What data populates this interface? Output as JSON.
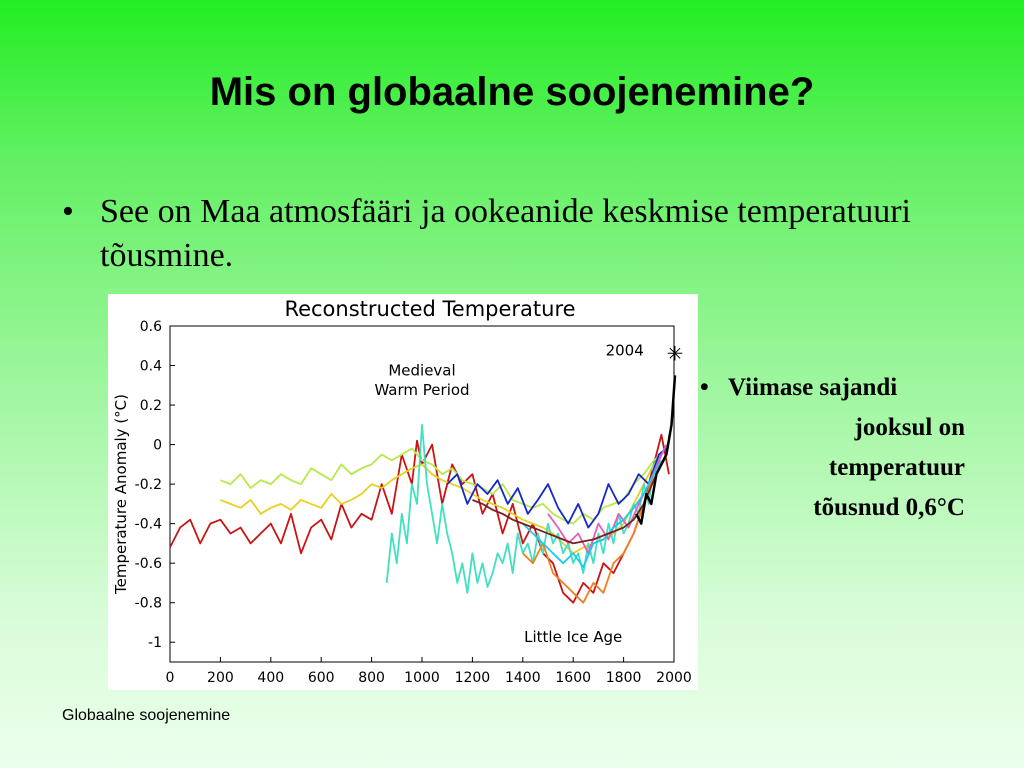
{
  "slide": {
    "title": "Mis on globaalne soojenemine?",
    "bullet": "See on Maa atmosfääri ja ookeanide keskmise temperatuuri tõusmine.",
    "side_bullet_lines": [
      "Viimase sajandi",
      "jooksul on",
      "temperatuur",
      "tõusnud 0,6°C"
    ],
    "footer": "Globaalne soojenemine"
  },
  "chart_data": {
    "type": "line",
    "title": "Reconstructed Temperature",
    "xlabel": "",
    "ylabel": "Temperature Anomaly (°C)",
    "xlim": [
      0,
      2000
    ],
    "ylim": [
      -1.1,
      0.6
    ],
    "xticks": [
      0,
      200,
      400,
      600,
      800,
      1000,
      1200,
      1400,
      1600,
      1800,
      2000
    ],
    "yticks": [
      0.6,
      0.4,
      0.2,
      0,
      -0.2,
      -0.4,
      -0.6,
      -0.8,
      -1
    ],
    "annotations": [
      {
        "text": "Medieval",
        "x": 1000,
        "y": 0.35
      },
      {
        "text": "Warm Period",
        "x": 1000,
        "y": 0.25
      },
      {
        "text": "Little Ice Age",
        "x": 1600,
        "y": -1.0
      },
      {
        "text": "2004",
        "x": 1880,
        "y": 0.45
      }
    ],
    "marker": {
      "label": "2004",
      "x": 2004,
      "y": 0.45
    },
    "series": [
      {
        "color": "#c81414",
        "x": [
          0,
          40,
          80,
          120,
          160,
          200,
          240,
          280,
          320,
          360,
          400,
          440,
          480,
          520,
          560,
          600,
          640,
          680,
          720,
          760,
          800,
          840,
          880,
          920,
          960,
          980,
          1000,
          1040,
          1080,
          1120,
          1160,
          1200,
          1240,
          1280,
          1320,
          1360,
          1400,
          1440,
          1480,
          1520,
          1560,
          1600,
          1640,
          1680,
          1720,
          1760,
          1800,
          1840,
          1880,
          1900,
          1920,
          1950,
          1980
        ],
        "y": [
          -0.52,
          -0.42,
          -0.38,
          -0.5,
          -0.4,
          -0.38,
          -0.45,
          -0.42,
          -0.5,
          -0.45,
          -0.4,
          -0.5,
          -0.35,
          -0.55,
          -0.42,
          -0.38,
          -0.48,
          -0.3,
          -0.42,
          -0.35,
          -0.38,
          -0.2,
          -0.35,
          -0.05,
          -0.2,
          0.02,
          -0.1,
          0.0,
          -0.3,
          -0.1,
          -0.2,
          -0.15,
          -0.35,
          -0.25,
          -0.45,
          -0.3,
          -0.5,
          -0.4,
          -0.55,
          -0.6,
          -0.75,
          -0.8,
          -0.7,
          -0.75,
          -0.6,
          -0.65,
          -0.55,
          -0.45,
          -0.3,
          -0.2,
          -0.1,
          0.05,
          -0.15
        ]
      },
      {
        "color": "#e8d020",
        "x": [
          200,
          240,
          280,
          320,
          360,
          400,
          440,
          480,
          520,
          560,
          600,
          640,
          680,
          720,
          760,
          800,
          840,
          880,
          920,
          960,
          1000,
          1040,
          1080,
          1120,
          1160,
          1200,
          1240,
          1280,
          1320,
          1360,
          1400,
          1440,
          1480,
          1520,
          1560,
          1600,
          1640,
          1680,
          1720,
          1760,
          1800,
          1840,
          1880,
          1920,
          1950
        ],
        "y": [
          -0.28,
          -0.3,
          -0.32,
          -0.28,
          -0.35,
          -0.32,
          -0.3,
          -0.33,
          -0.28,
          -0.3,
          -0.32,
          -0.25,
          -0.3,
          -0.28,
          -0.25,
          -0.2,
          -0.22,
          -0.18,
          -0.15,
          -0.12,
          -0.1,
          -0.15,
          -0.18,
          -0.2,
          -0.22,
          -0.25,
          -0.28,
          -0.3,
          -0.32,
          -0.35,
          -0.38,
          -0.4,
          -0.42,
          -0.45,
          -0.5,
          -0.55,
          -0.52,
          -0.5,
          -0.48,
          -0.45,
          -0.4,
          -0.3,
          -0.2,
          -0.1,
          -0.05
        ]
      },
      {
        "color": "#b8e84a",
        "x": [
          200,
          240,
          280,
          320,
          360,
          400,
          440,
          480,
          520,
          560,
          600,
          640,
          680,
          720,
          760,
          800,
          840,
          880,
          920,
          960,
          1000,
          1040,
          1080,
          1120,
          1160,
          1200,
          1240,
          1280,
          1320,
          1360,
          1400,
          1440,
          1480,
          1520,
          1560,
          1600,
          1640,
          1680,
          1720,
          1760,
          1800,
          1840,
          1880,
          1920,
          1950
        ],
        "y": [
          -0.18,
          -0.2,
          -0.15,
          -0.22,
          -0.18,
          -0.2,
          -0.15,
          -0.18,
          -0.2,
          -0.12,
          -0.15,
          -0.18,
          -0.1,
          -0.15,
          -0.12,
          -0.1,
          -0.05,
          -0.08,
          -0.05,
          -0.02,
          -0.08,
          -0.1,
          -0.15,
          -0.12,
          -0.18,
          -0.2,
          -0.22,
          -0.25,
          -0.2,
          -0.28,
          -0.3,
          -0.32,
          -0.3,
          -0.35,
          -0.38,
          -0.4,
          -0.35,
          -0.38,
          -0.32,
          -0.3,
          -0.28,
          -0.2,
          -0.15,
          -0.08,
          -0.05
        ]
      },
      {
        "color": "#40e0c0",
        "x": [
          860,
          880,
          900,
          920,
          940,
          960,
          980,
          1000,
          1020,
          1040,
          1060,
          1080,
          1100,
          1120,
          1140,
          1160,
          1180,
          1200,
          1220,
          1240,
          1260,
          1280,
          1300,
          1320,
          1340,
          1360,
          1380,
          1400,
          1420,
          1440,
          1460,
          1480,
          1500,
          1520,
          1540,
          1560,
          1580,
          1600,
          1620,
          1640,
          1660,
          1680,
          1700,
          1720,
          1740,
          1760,
          1780,
          1800,
          1820,
          1840,
          1860,
          1880,
          1900,
          1920,
          1950
        ],
        "y": [
          -0.7,
          -0.45,
          -0.6,
          -0.35,
          -0.5,
          -0.2,
          -0.3,
          0.1,
          -0.2,
          -0.35,
          -0.5,
          -0.3,
          -0.45,
          -0.55,
          -0.7,
          -0.6,
          -0.75,
          -0.55,
          -0.7,
          -0.6,
          -0.72,
          -0.65,
          -0.55,
          -0.6,
          -0.5,
          -0.65,
          -0.45,
          -0.55,
          -0.5,
          -0.6,
          -0.45,
          -0.55,
          -0.4,
          -0.5,
          -0.45,
          -0.55,
          -0.5,
          -0.6,
          -0.55,
          -0.65,
          -0.5,
          -0.6,
          -0.45,
          -0.55,
          -0.4,
          -0.5,
          -0.35,
          -0.45,
          -0.4,
          -0.3,
          -0.35,
          -0.2,
          -0.3,
          -0.1,
          -0.05
        ]
      },
      {
        "color": "#1428c8",
        "x": [
          1100,
          1140,
          1180,
          1220,
          1260,
          1300,
          1340,
          1380,
          1420,
          1460,
          1500,
          1540,
          1580,
          1620,
          1660,
          1700,
          1740,
          1780,
          1820,
          1860,
          1900,
          1940,
          1970
        ],
        "y": [
          -0.2,
          -0.15,
          -0.3,
          -0.2,
          -0.25,
          -0.18,
          -0.3,
          -0.22,
          -0.35,
          -0.28,
          -0.2,
          -0.32,
          -0.4,
          -0.3,
          -0.42,
          -0.35,
          -0.2,
          -0.3,
          -0.25,
          -0.15,
          -0.2,
          -0.05,
          -0.02
        ]
      },
      {
        "color": "#f08020",
        "x": [
          1400,
          1440,
          1480,
          1520,
          1560,
          1600,
          1640,
          1680,
          1720,
          1760,
          1800,
          1840,
          1880,
          1920,
          1950
        ],
        "y": [
          -0.55,
          -0.6,
          -0.5,
          -0.65,
          -0.7,
          -0.75,
          -0.8,
          -0.7,
          -0.75,
          -0.6,
          -0.55,
          -0.45,
          -0.3,
          -0.15,
          -0.05
        ]
      },
      {
        "color": "#e060c0",
        "x": [
          1500,
          1540,
          1580,
          1620,
          1660,
          1700,
          1740,
          1780,
          1820,
          1860,
          1900,
          1940,
          1970
        ],
        "y": [
          -0.35,
          -0.42,
          -0.5,
          -0.45,
          -0.55,
          -0.4,
          -0.48,
          -0.35,
          -0.42,
          -0.3,
          -0.2,
          -0.08,
          0.0
        ]
      },
      {
        "color": "#1ec8e8",
        "x": [
          1400,
          1440,
          1480,
          1520,
          1560,
          1600,
          1640,
          1680,
          1720,
          1760,
          1800,
          1840,
          1880,
          1920,
          1950
        ],
        "y": [
          -0.4,
          -0.45,
          -0.5,
          -0.55,
          -0.6,
          -0.55,
          -0.62,
          -0.5,
          -0.48,
          -0.42,
          -0.38,
          -0.32,
          -0.25,
          -0.15,
          -0.08
        ]
      },
      {
        "color": "#7a1e1e",
        "x": [
          1200,
          1240,
          1280,
          1320,
          1360,
          1400,
          1440,
          1480,
          1520,
          1560,
          1600,
          1640,
          1680,
          1720,
          1760,
          1800,
          1840,
          1880,
          1920,
          1950
        ],
        "y": [
          -0.28,
          -0.3,
          -0.33,
          -0.35,
          -0.38,
          -0.4,
          -0.42,
          -0.44,
          -0.46,
          -0.48,
          -0.5,
          -0.49,
          -0.48,
          -0.46,
          -0.44,
          -0.42,
          -0.38,
          -0.3,
          -0.18,
          -0.1
        ]
      },
      {
        "color": "#000000",
        "x": [
          1850,
          1870,
          1890,
          1910,
          1930,
          1950,
          1970,
          1990,
          2004
        ],
        "y": [
          -0.35,
          -0.4,
          -0.25,
          -0.3,
          -0.15,
          -0.1,
          -0.05,
          0.1,
          0.35
        ]
      }
    ]
  }
}
